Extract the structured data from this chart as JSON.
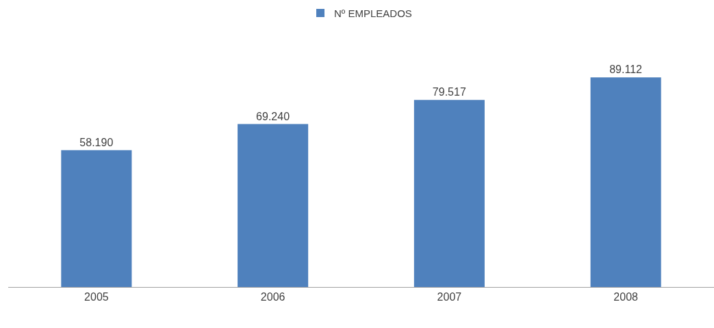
{
  "chart_data": {
    "type": "bar",
    "categories": [
      "2005",
      "2006",
      "2007",
      "2008"
    ],
    "series": [
      {
        "name": "Nº EMPLEADOS",
        "color": "#4f81bd",
        "values": [
          58190,
          69240,
          79517,
          89112
        ],
        "value_labels": [
          "58.190",
          "69.240",
          "79.517",
          "89.112"
        ]
      }
    ],
    "tick_labels": "x",
    "grid": false,
    "legend": "top"
  }
}
